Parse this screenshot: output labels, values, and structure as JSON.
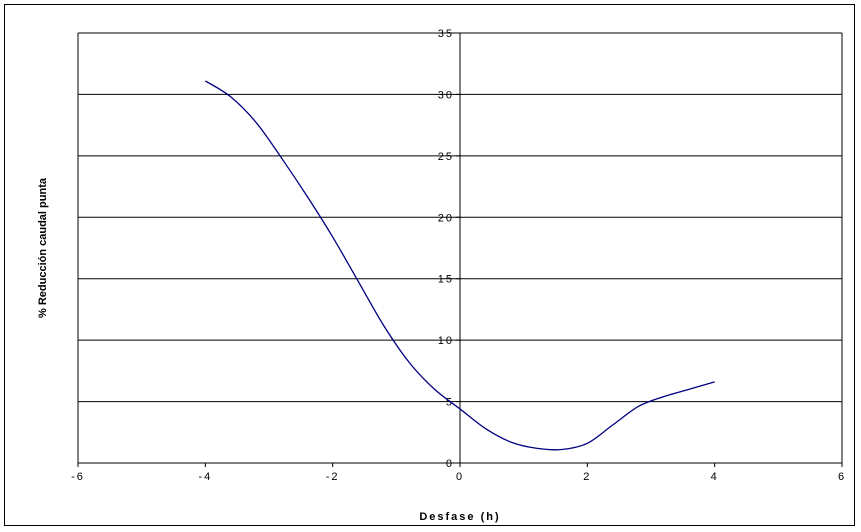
{
  "chart_data": {
    "type": "line",
    "title": "",
    "xlabel": "Desfase (h)",
    "ylabel": "% Reducción caudal punta",
    "xlim": [
      -6,
      6
    ],
    "ylim": [
      0,
      35
    ],
    "x_ticks": [
      "-6",
      "-4",
      "-2",
      "0",
      "2",
      "4",
      "6"
    ],
    "y_ticks": [
      "0",
      "5",
      "10",
      "15",
      "20",
      "25",
      "30",
      "35"
    ],
    "grid": "horizontal",
    "series": [
      {
        "color": "#000080",
        "x": [
          -4.0,
          -3.6,
          -3.2,
          -2.8,
          -2.4,
          -2.0,
          -1.6,
          -1.2,
          -0.8,
          -0.4,
          0.0,
          0.4,
          0.8,
          1.2,
          1.6,
          2.0,
          2.4,
          2.8,
          3.2,
          3.6,
          4.0
        ],
        "y": [
          31.1,
          29.8,
          27.7,
          24.8,
          21.7,
          18.4,
          14.8,
          11.2,
          8.2,
          6.0,
          4.4,
          2.8,
          1.7,
          1.2,
          1.1,
          1.6,
          3.1,
          4.6,
          5.4,
          6.0,
          6.6
        ]
      }
    ]
  }
}
